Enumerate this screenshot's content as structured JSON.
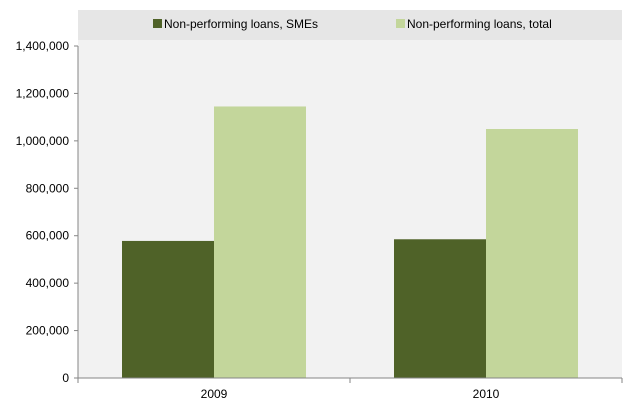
{
  "chart_data": {
    "type": "bar",
    "title": "",
    "xlabel": "",
    "ylabel": "",
    "categories": [
      "2009",
      "2010"
    ],
    "series": [
      {
        "name": "Non-performing loans, SMEs",
        "values": [
          578000,
          585000
        ],
        "color": "#4f6228"
      },
      {
        "name": "Non-performing loans, total",
        "values": [
          1145000,
          1050000
        ],
        "color": "#c3d69b"
      }
    ],
    "ylim": [
      0,
      1400000
    ],
    "yticks": [
      "0",
      "200,000",
      "400,000",
      "600,000",
      "800,000",
      "1,000,000",
      "1,200,000",
      "1,400,000"
    ],
    "grid": false,
    "legend_position": "top",
    "plot_background": "#f2f2f2"
  }
}
